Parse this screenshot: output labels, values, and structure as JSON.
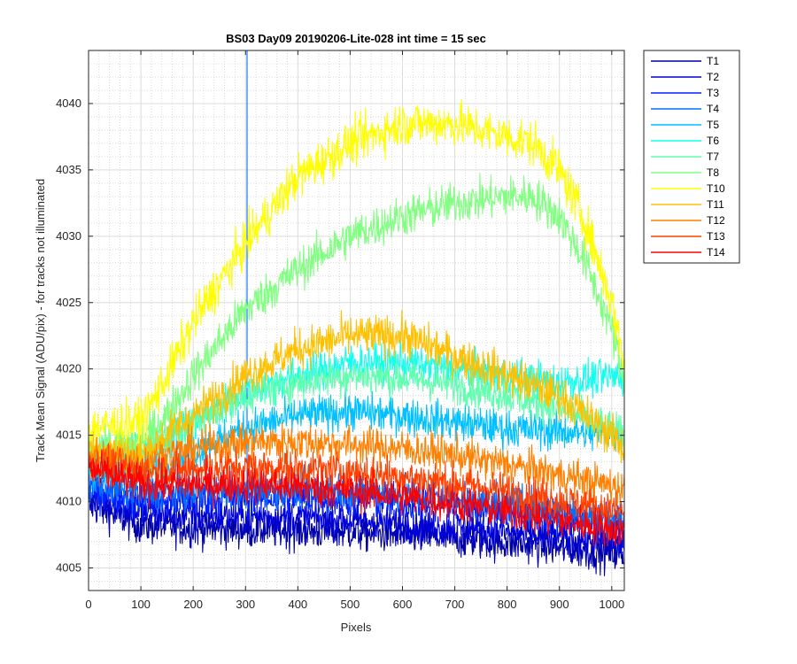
{
  "chart_data": {
    "type": "line",
    "title": "BS03 Day09 20190206-Lite-028 int time = 15 sec",
    "xlabel": "Pixels",
    "ylabel": "Track Mean Signal (ADU/pix) - for tracks not illuminated",
    "xlim": [
      0,
      1024
    ],
    "ylim": [
      4003.3,
      4044
    ],
    "xticks": [
      0,
      100,
      200,
      300,
      400,
      500,
      600,
      700,
      800,
      900,
      1000
    ],
    "yticks": [
      4005,
      4010,
      4015,
      4020,
      4025,
      4030,
      4035,
      4040
    ],
    "grid": true,
    "minor_grid": true,
    "legend_position": "outside-top-right",
    "series": [
      {
        "name": "T1",
        "color": "#0000a8",
        "x": [
          0,
          100,
          200,
          300,
          400,
          500,
          600,
          700,
          800,
          900,
          1024
        ],
        "values": [
          4009.8,
          4008.2,
          4008.0,
          4007.9,
          4007.8,
          4007.7,
          4007.5,
          4007.2,
          4006.9,
          4006.5,
          4006.0
        ],
        "noise": 1.0
      },
      {
        "name": "T2",
        "color": "#0000d8",
        "x": [
          0,
          100,
          200,
          300,
          400,
          500,
          600,
          700,
          800,
          900,
          1024
        ],
        "values": [
          4010.5,
          4009.2,
          4009.0,
          4008.9,
          4008.8,
          4008.6,
          4008.3,
          4008.0,
          4007.7,
          4007.3,
          4006.8
        ],
        "noise": 1.0
      },
      {
        "name": "T3",
        "color": "#0020ff",
        "x": [
          0,
          100,
          200,
          300,
          400,
          500,
          600,
          700,
          800,
          900,
          1024
        ],
        "values": [
          4011.0,
          4010.0,
          4010.2,
          4010.3,
          4010.3,
          4010.2,
          4010.0,
          4009.7,
          4009.3,
          4008.8,
          4008.0
        ],
        "noise": 1.0
      },
      {
        "name": "T4",
        "color": "#0070ff",
        "x": [
          0,
          100,
          200,
          300,
          400,
          500,
          600,
          700,
          800,
          900,
          1024
        ],
        "values": [
          4011.5,
          4010.6,
          4010.8,
          4010.9,
          4011.0,
          4010.9,
          4010.6,
          4010.3,
          4009.9,
          4009.4,
          4008.6
        ],
        "noise": 1.0
      },
      {
        "name": "T5",
        "color": "#00c0ff",
        "x": [
          0,
          100,
          200,
          300,
          400,
          500,
          600,
          700,
          800,
          900,
          1024
        ],
        "values": [
          4012.5,
          4012.0,
          4013.8,
          4015.5,
          4016.5,
          4016.8,
          4016.5,
          4016.0,
          4015.5,
          4015.3,
          4015.0
        ],
        "noise": 1.0
      },
      {
        "name": "T6",
        "color": "#10ffef",
        "x": [
          0,
          100,
          200,
          300,
          400,
          500,
          600,
          700,
          800,
          900,
          1024
        ],
        "values": [
          4013.5,
          4013.5,
          4016.0,
          4018.3,
          4019.5,
          4020.5,
          4020.5,
          4020.0,
          4019.5,
          4019.0,
          4019.5
        ],
        "noise": 1.0
      },
      {
        "name": "T7",
        "color": "#60ffb0",
        "x": [
          0,
          100,
          200,
          300,
          400,
          500,
          600,
          700,
          800,
          900,
          1024
        ],
        "values": [
          4014.0,
          4013.8,
          4016.0,
          4018.0,
          4019.0,
          4019.5,
          4019.3,
          4018.8,
          4018.0,
          4017.0,
          4015.0
        ],
        "noise": 1.0
      },
      {
        "name": "T8",
        "color": "#80ff80",
        "x": [
          0,
          100,
          150,
          200,
          300,
          400,
          500,
          600,
          700,
          800,
          850,
          900,
          950,
          1000,
          1024
        ],
        "values": [
          4014.0,
          4014.5,
          4016.5,
          4019.5,
          4024.5,
          4027.5,
          4030.0,
          4031.5,
          4032.5,
          4033.0,
          4033.0,
          4031.5,
          4028.0,
          4023.0,
          4019.0
        ],
        "noise": 1.1
      },
      {
        "name": "T10",
        "color": "#ffff00",
        "x": [
          0,
          100,
          150,
          200,
          300,
          400,
          500,
          600,
          700,
          800,
          850,
          900,
          950,
          1000,
          1024
        ],
        "values": [
          4015.5,
          4016.0,
          4019.5,
          4023.5,
          4029.5,
          4034.5,
          4037.0,
          4038.5,
          4038.5,
          4037.5,
          4037.0,
          4035.0,
          4031.0,
          4025.0,
          4020.5
        ],
        "noise": 1.2
      },
      {
        "name": "T11",
        "color": "#ffc000",
        "x": [
          0,
          100,
          200,
          300,
          400,
          500,
          600,
          700,
          800,
          900,
          950,
          1000,
          1024
        ],
        "values": [
          4014.0,
          4013.5,
          4016.5,
          4019.5,
          4021.5,
          4022.5,
          4022.5,
          4021.0,
          4019.5,
          4018.0,
          4016.5,
          4015.0,
          4014.0
        ],
        "noise": 1.1
      },
      {
        "name": "T12",
        "color": "#ff8000",
        "x": [
          0,
          100,
          200,
          300,
          400,
          500,
          600,
          700,
          800,
          900,
          1024
        ],
        "values": [
          4013.5,
          4013.0,
          4014.0,
          4014.5,
          4014.5,
          4014.3,
          4014.0,
          4013.5,
          4012.8,
          4012.0,
          4011.0
        ],
        "noise": 1.0
      },
      {
        "name": "T13",
        "color": "#ff4000",
        "x": [
          0,
          100,
          200,
          300,
          400,
          500,
          600,
          700,
          800,
          900,
          1024
        ],
        "values": [
          4013.0,
          4012.3,
          4012.5,
          4012.6,
          4012.5,
          4012.3,
          4011.9,
          4011.4,
          4010.8,
          4010.1,
          4009.2
        ],
        "noise": 1.0
      },
      {
        "name": "T14",
        "color": "#ff0000",
        "x": [
          0,
          100,
          200,
          300,
          400,
          500,
          600,
          700,
          800,
          900,
          1024
        ],
        "values": [
          4012.5,
          4011.3,
          4011.3,
          4011.3,
          4011.1,
          4010.8,
          4010.4,
          4009.9,
          4009.3,
          4008.6,
          4007.8
        ],
        "noise": 1.0
      }
    ],
    "annotations": [
      {
        "type": "spike",
        "series": "T4",
        "x": 303,
        "y_from": 4011.0,
        "y_to": 4044
      }
    ]
  }
}
